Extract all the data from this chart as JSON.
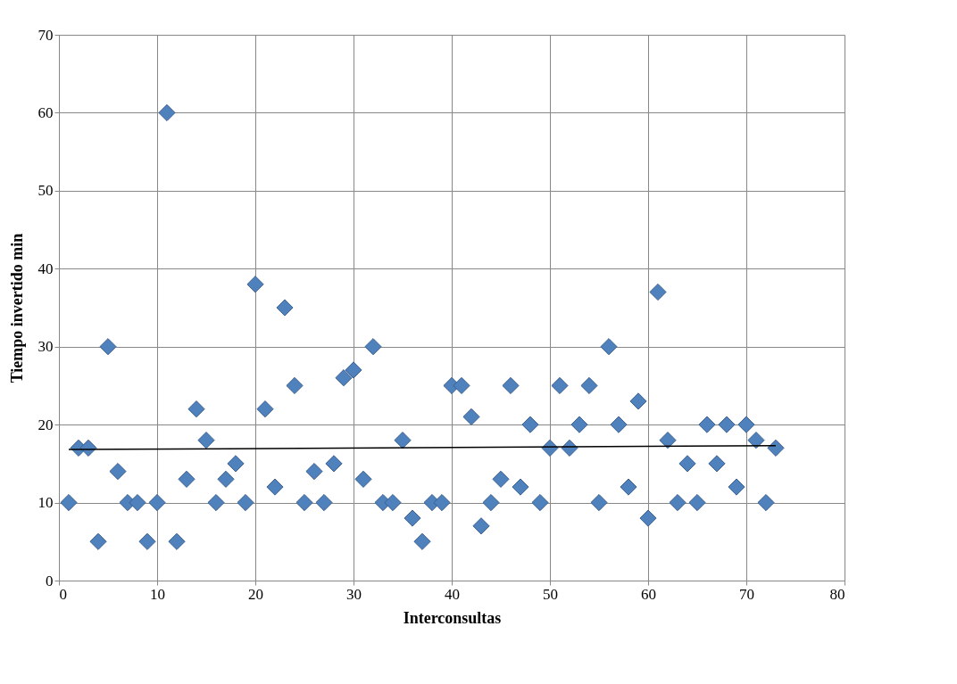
{
  "chart_data": {
    "type": "scatter",
    "xlabel": "Interconsultas",
    "ylabel": "Tiempo invertido min",
    "xlim": [
      0,
      80
    ],
    "xticks": [
      0,
      10,
      20,
      30,
      40,
      50,
      60,
      70,
      80
    ],
    "ylim": [
      0,
      70
    ],
    "yticks": [
      0,
      10,
      20,
      30,
      40,
      50,
      60,
      70
    ],
    "grid": true,
    "series": [
      {
        "color": "#4f81bd",
        "marker": "diamond",
        "x": [
          1,
          2,
          3,
          4,
          5,
          6,
          7,
          8,
          9,
          10,
          11,
          12,
          13,
          14,
          15,
          16,
          17,
          18,
          19,
          20,
          21,
          22,
          23,
          24,
          25,
          26,
          27,
          28,
          29,
          30,
          31,
          32,
          33,
          34,
          35,
          36,
          37,
          38,
          39,
          40,
          41,
          42,
          43,
          44,
          45,
          46,
          47,
          48,
          49,
          50,
          51,
          52,
          53,
          54,
          55,
          56,
          57,
          58,
          59,
          60,
          61,
          62,
          63,
          64,
          65,
          66,
          67,
          68,
          69,
          70,
          71,
          72,
          73
        ],
        "values": [
          10,
          17,
          17,
          5,
          30,
          14,
          10,
          10,
          5,
          10,
          60,
          5,
          13,
          22,
          18,
          10,
          13,
          15,
          10,
          38,
          22,
          12,
          35,
          25,
          10,
          14,
          10,
          15,
          26,
          27,
          13,
          30,
          10,
          10,
          18,
          8,
          5,
          10,
          10,
          25,
          25,
          21,
          7,
          10,
          13,
          25,
          12,
          20,
          10,
          17,
          25,
          17,
          20,
          25,
          10,
          30,
          20,
          12,
          23,
          8,
          37,
          18,
          10,
          15,
          10,
          20,
          15,
          20,
          12,
          20,
          18,
          10,
          17
        ]
      },
      {
        "type": "line",
        "marker": "none",
        "color": "#000000",
        "x": [
          1,
          73
        ],
        "values": [
          16.8,
          17.3
        ]
      }
    ]
  }
}
